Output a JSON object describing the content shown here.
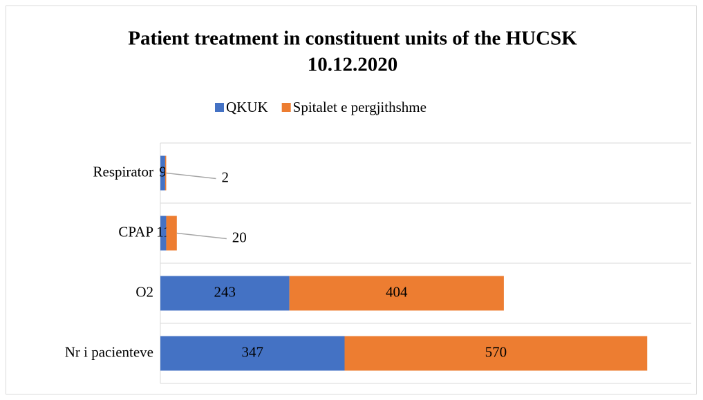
{
  "chart_data": {
    "type": "stacked-barh",
    "title": [
      "Patient treatment in constituent units of the HUCSK",
      "10.12.2020"
    ],
    "categories": [
      "Respirator",
      "CPAP",
      "O2",
      "Nr i pacienteve"
    ],
    "series": [
      {
        "name": "QKUK",
        "color": "#4472c4",
        "values": [
          9,
          11,
          243,
          347
        ]
      },
      {
        "name": "Spitalet e pergjithshme",
        "color": "#ed7d31",
        "values": [
          2,
          20,
          404,
          570
        ]
      }
    ],
    "xlim": [
      0,
      1000
    ],
    "legend": "top"
  }
}
